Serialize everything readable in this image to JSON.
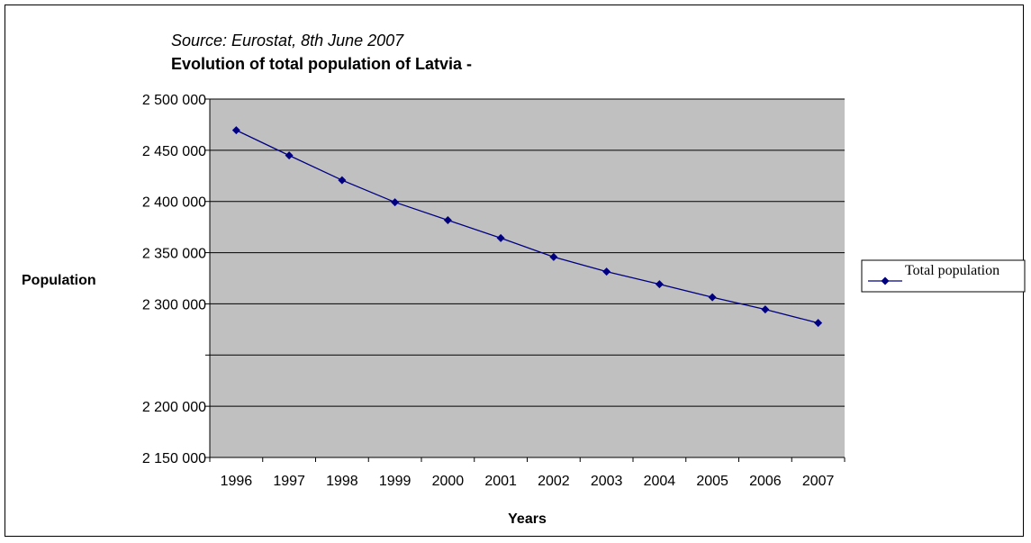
{
  "colors": {
    "plot_background": "#c0c0c0",
    "series_line": "#000080",
    "gridline": "#000000"
  },
  "chart_data": {
    "type": "line",
    "source": "Source: Eurostat, 8th June 2007",
    "title": "Evolution of total population of Latvia -",
    "xlabel": "Years",
    "ylabel": "Population",
    "ylim": [
      2150000,
      2500000
    ],
    "grid": true,
    "legend_position": "right",
    "categories": [
      "1996",
      "1997",
      "1998",
      "1999",
      "2000",
      "2001",
      "2002",
      "2003",
      "2004",
      "2005",
      "2006",
      "2007"
    ],
    "y_ticks": [
      {
        "value": 2500000,
        "label": "2 500 000"
      },
      {
        "value": 2450000,
        "label": "2 450 000"
      },
      {
        "value": 2400000,
        "label": "2 400 000"
      },
      {
        "value": 2350000,
        "label": "2 350 000"
      },
      {
        "value": 2300000,
        "label": "2 300 000"
      },
      {
        "value": 2250000,
        "label": ""
      },
      {
        "value": 2200000,
        "label": "2 200 000"
      },
      {
        "value": 2150000,
        "label": "2 150 000"
      }
    ],
    "series": [
      {
        "name": "Total population",
        "values": [
          2469531,
          2444912,
          2420789,
          2399248,
          2381715,
          2364254,
          2345768,
          2331480,
          2319203,
          2306434,
          2294590,
          2281305
        ]
      }
    ]
  }
}
